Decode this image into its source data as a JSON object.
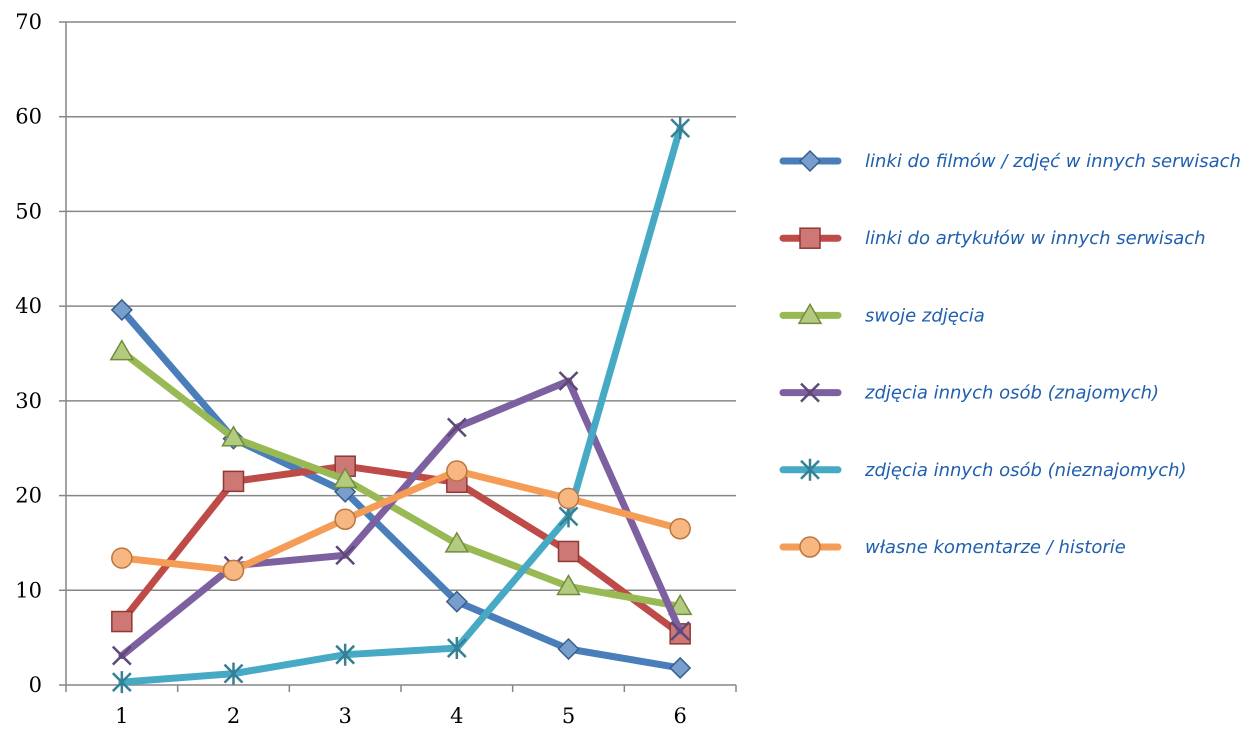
{
  "chart_data": {
    "type": "line",
    "title": "",
    "xlabel": "",
    "ylabel": "",
    "x": [
      1,
      2,
      3,
      4,
      5,
      6
    ],
    "x_tick_labels": [
      "1",
      "2",
      "3",
      "4",
      "5",
      "6"
    ],
    "ylim": [
      0,
      70
    ],
    "y_ticks": [
      0,
      10,
      20,
      30,
      40,
      50,
      60,
      70
    ],
    "y_tick_labels": [
      "0",
      "10",
      "20",
      "30",
      "40",
      "50",
      "60",
      "70"
    ],
    "grid": "horizontal",
    "legend_position": "right",
    "series": [
      {
        "name": "linki do filmów / zdjęć w innych serwisach",
        "color": "#4a7ebb",
        "marker": "diamond",
        "values": [
          39.6,
          26,
          20.4,
          8.8,
          3.8,
          1.8
        ]
      },
      {
        "name": "linki do artykułów w innych serwisach",
        "color": "#be4b48",
        "marker": "square",
        "values": [
          6.7,
          21.5,
          23.1,
          21.4,
          14.1,
          5.4
        ]
      },
      {
        "name": "swoje zdjęcia",
        "color": "#98b954",
        "marker": "triangle",
        "values": [
          35.2,
          26.1,
          21.7,
          14.9,
          10.4,
          8.3
        ]
      },
      {
        "name": "zdjęcia innych osób (znajomych)",
        "color": "#7d60a0",
        "marker": "x",
        "values": [
          3.1,
          12.6,
          13.7,
          27.2,
          32.1,
          5.7
        ]
      },
      {
        "name": "zdjęcia innych osób (nieznajomych)",
        "color": "#46aac5",
        "marker": "star",
        "values": [
          0.3,
          1.2,
          3.2,
          3.9,
          17.8,
          58.8
        ]
      },
      {
        "name": "własne komentarze / historie",
        "color": "#f59d56",
        "marker": "circle",
        "values": [
          13.4,
          12.1,
          17.5,
          22.6,
          19.7,
          16.5
        ]
      }
    ]
  }
}
